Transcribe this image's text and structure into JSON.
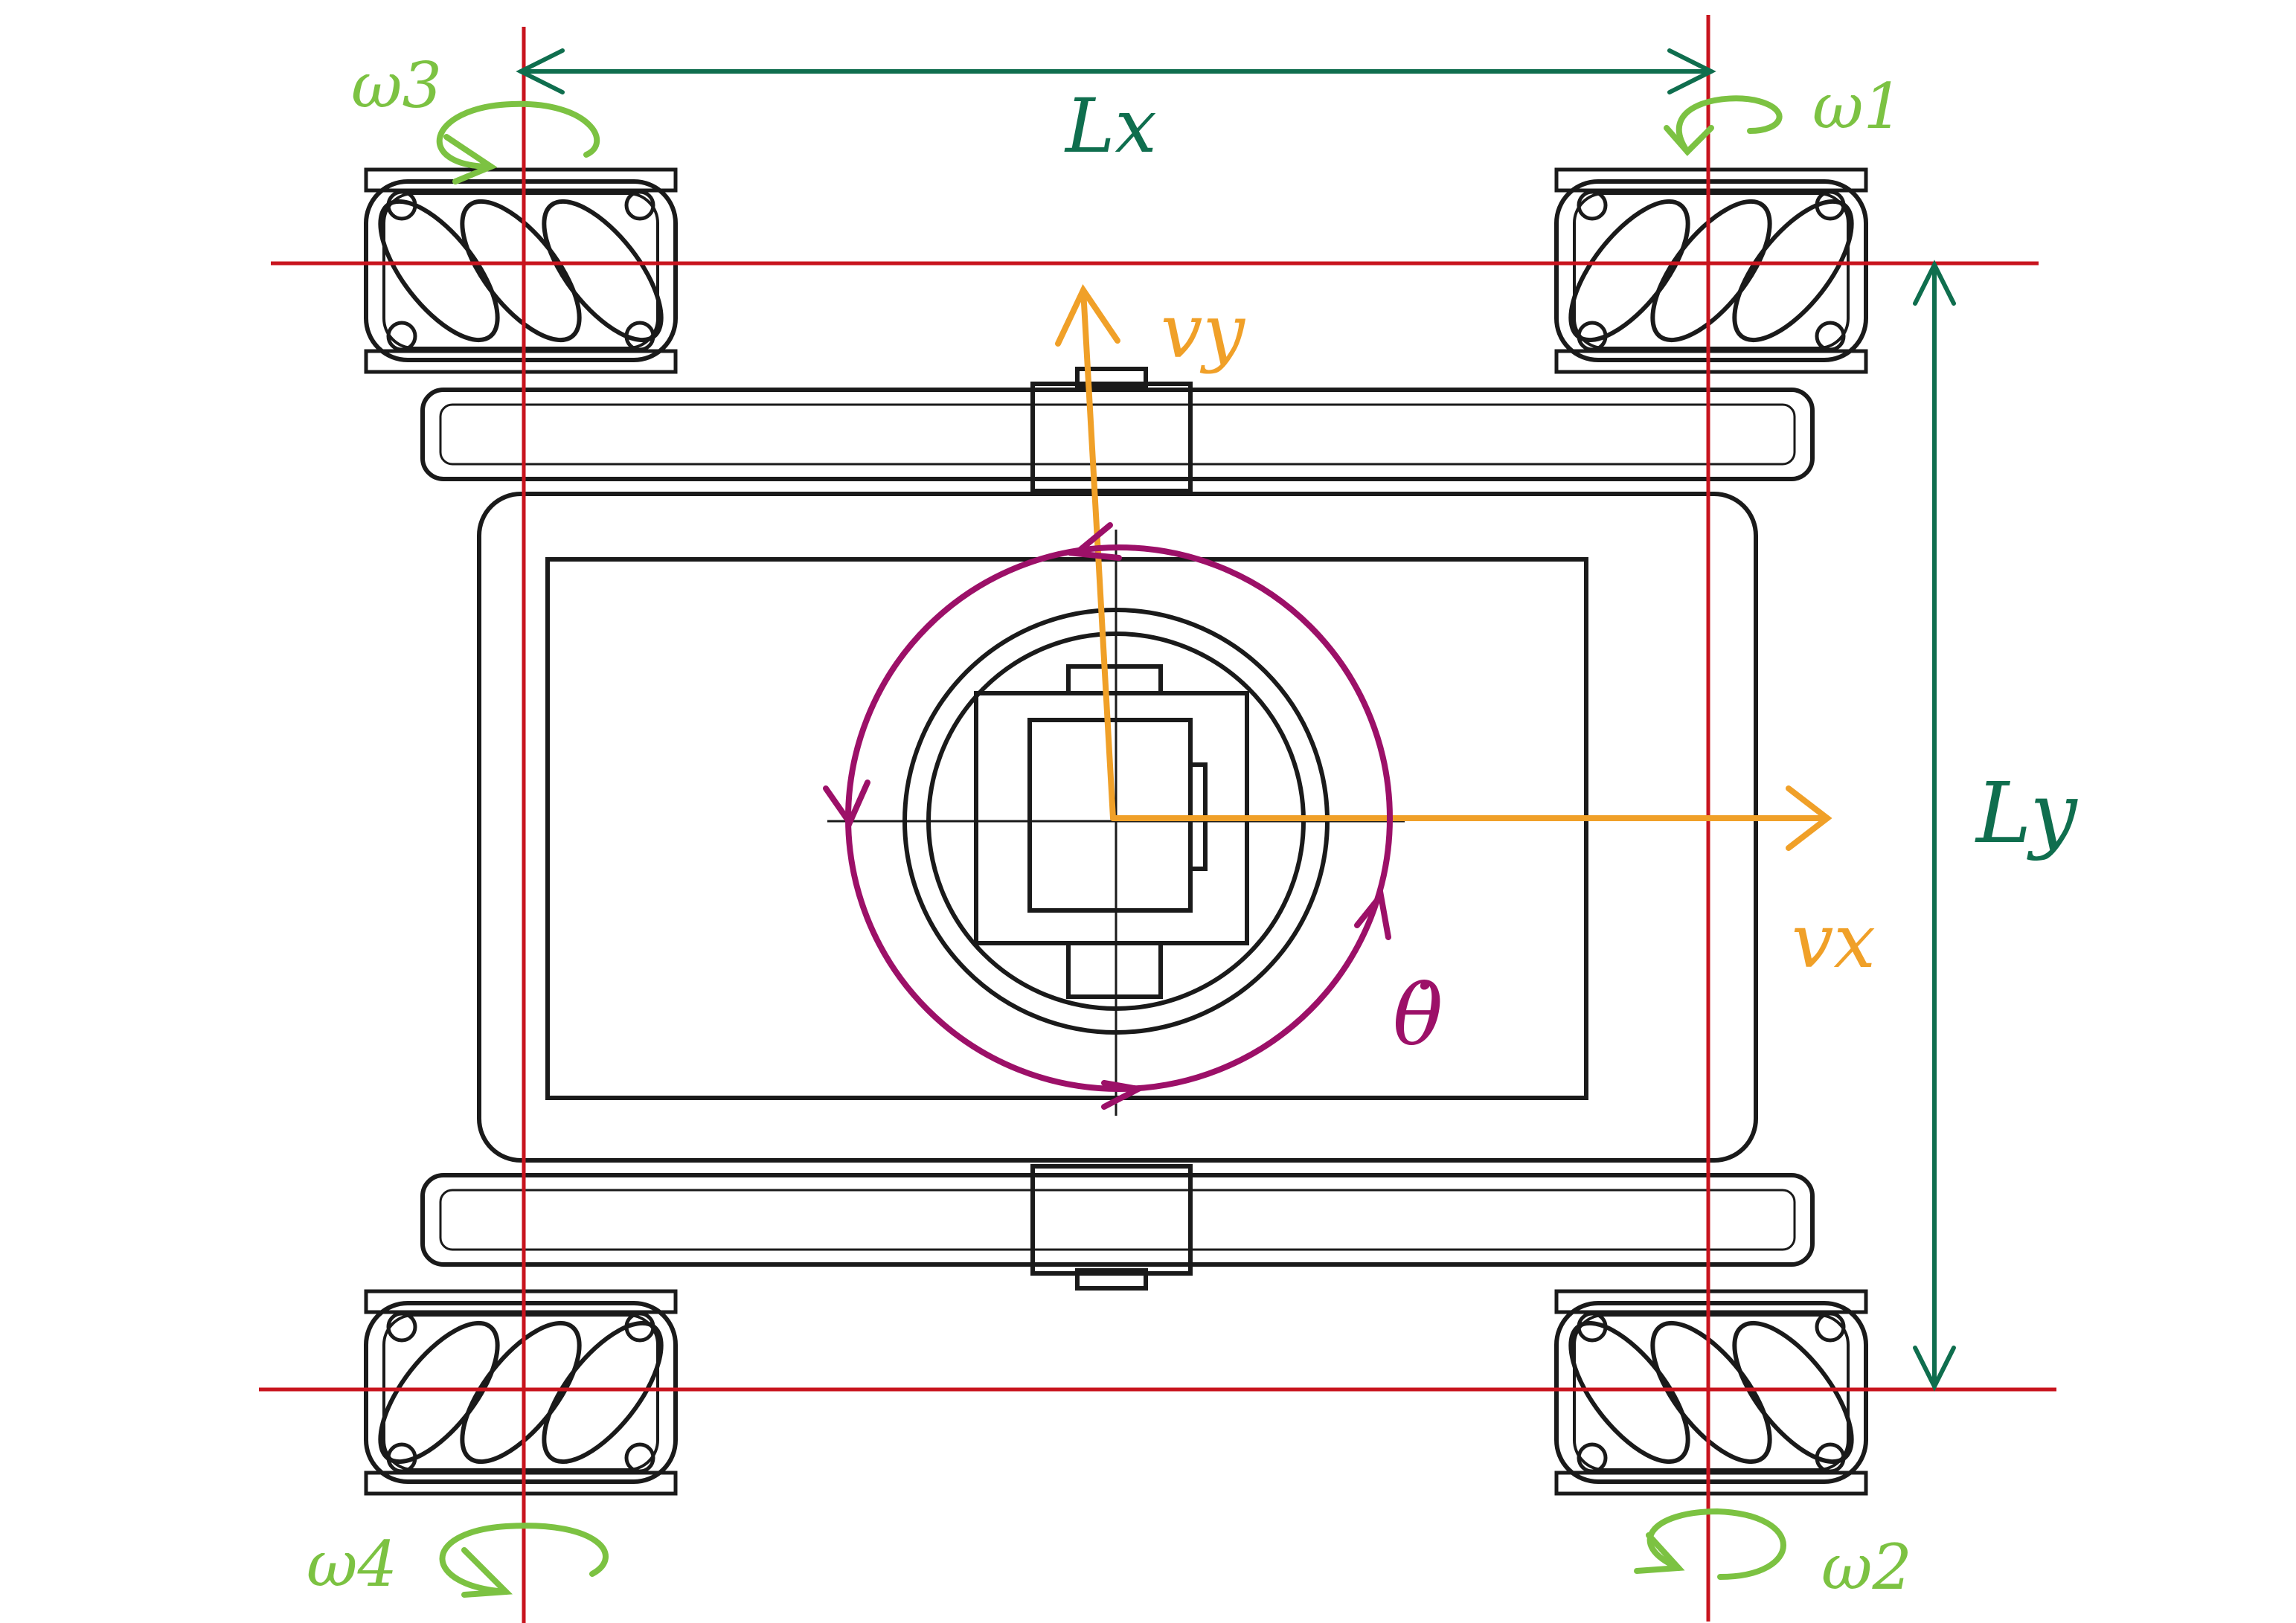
{
  "labels": {
    "lx": "Lx",
    "ly": "Ly",
    "vx": "vx",
    "vy": "vy",
    "theta_dot": "θ̇",
    "w1": "ω1",
    "w2": "ω2",
    "w3": "ω3",
    "w4": "ω4"
  },
  "colors": {
    "reference_lines": "#c8141e",
    "dimensions": "#0f6e4e",
    "velocity": "#f0a028",
    "rotation": "#9c1068",
    "wheel_speed": "#7cc242",
    "drawing": "#1a1a1a"
  }
}
